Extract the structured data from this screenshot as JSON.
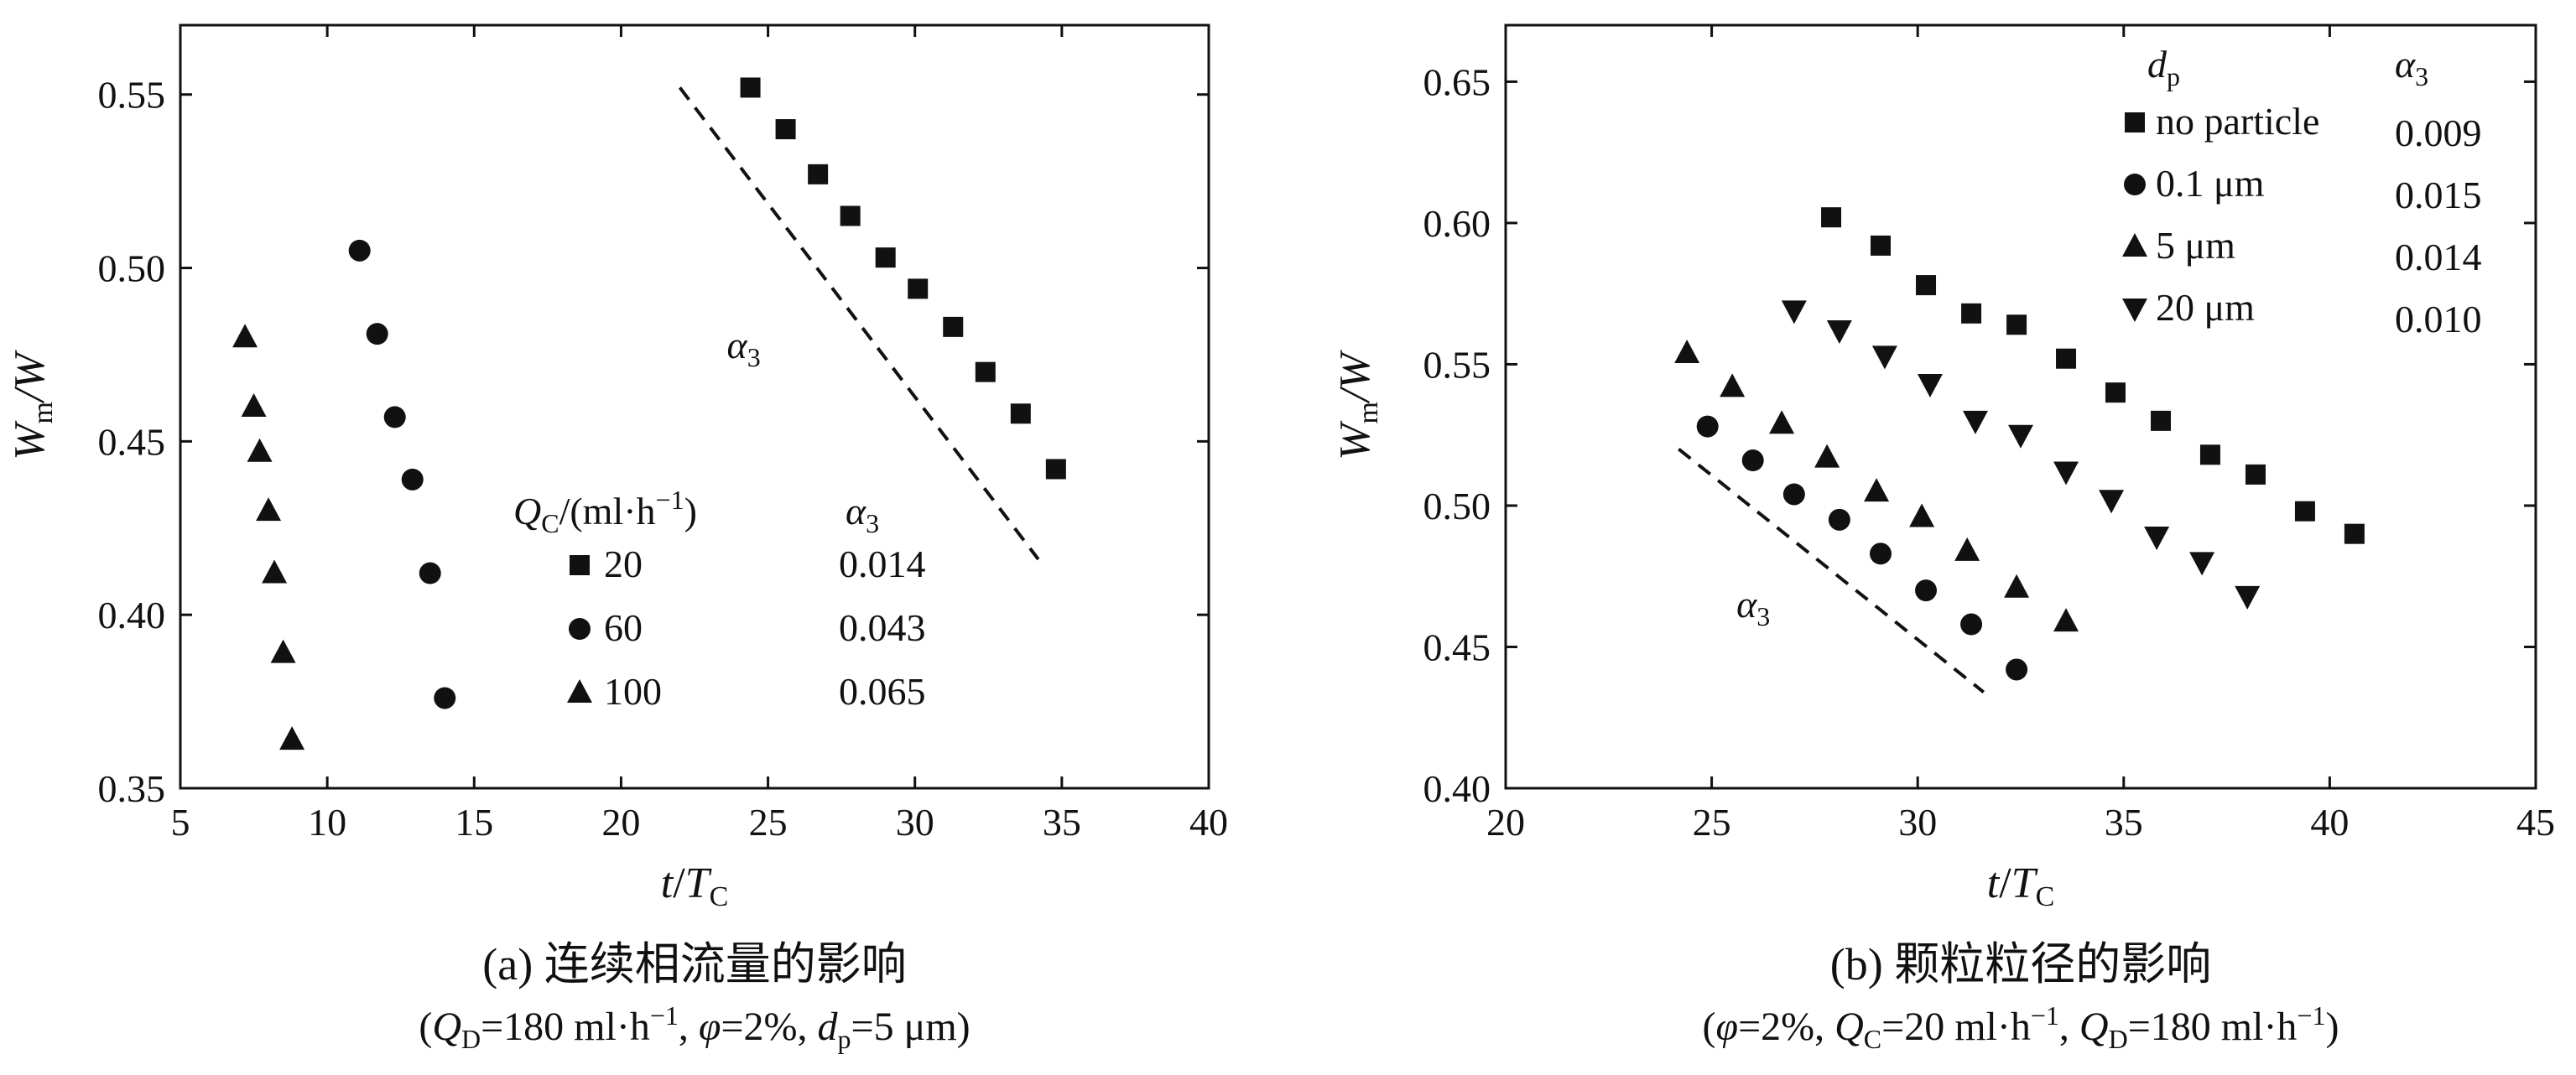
{
  "chart_data": [
    {
      "type": "scatter",
      "panel": "a",
      "xlabel": {
        "main": "t",
        "sep": "/",
        "var": "T",
        "sub": "C"
      },
      "ylabel": {
        "main": "W",
        "msub": "m",
        "sep": "/",
        "den": "W"
      },
      "xlim": [
        5,
        40
      ],
      "ylim": [
        0.35,
        0.57
      ],
      "xticks": [
        5,
        10,
        15,
        20,
        25,
        30,
        35,
        40
      ],
      "xtick_labels": [
        "5",
        "10",
        "15",
        "20",
        "25",
        "30",
        "35",
        "40"
      ],
      "yticks": [
        0.35,
        0.4,
        0.45,
        0.5,
        0.55
      ],
      "ytick_labels": [
        "0.35",
        "0.40",
        "0.45",
        "0.50",
        "0.55"
      ],
      "legend": {
        "header_q": "Q",
        "header_sub": "C",
        "header_unit": "/(ml·h",
        "header_exp": "−1",
        "header_close": ")",
        "header_alpha": "α",
        "header_alpha_sub": "3"
      },
      "series": [
        {
          "name": "20",
          "marker": "square",
          "alpha3": "0.014",
          "x": [
            24.4,
            25.6,
            26.7,
            27.8,
            29.0,
            30.1,
            31.3,
            32.4,
            33.6,
            34.8
          ],
          "y": [
            0.552,
            0.54,
            0.527,
            0.515,
            0.503,
            0.494,
            0.483,
            0.47,
            0.458,
            0.442
          ]
        },
        {
          "name": "60",
          "marker": "circle",
          "alpha3": "0.043",
          "x": [
            11.1,
            11.7,
            12.3,
            12.9,
            13.5,
            14.0
          ],
          "y": [
            0.505,
            0.481,
            0.457,
            0.439,
            0.412,
            0.376
          ]
        },
        {
          "name": "100",
          "marker": "triangle",
          "alpha3": "0.065",
          "x": [
            7.2,
            7.5,
            7.7,
            8.0,
            8.2,
            8.5,
            8.8
          ],
          "y": [
            0.48,
            0.46,
            0.447,
            0.43,
            0.412,
            0.389,
            0.364
          ]
        }
      ],
      "annotation": {
        "text": "α",
        "sub": "3",
        "x": 23.6,
        "y": 0.474
      },
      "guide_line": {
        "x": [
          22.0,
          34.2
        ],
        "y": [
          0.552,
          0.416
        ]
      },
      "caption_title": "(a) 连续相流量的影响",
      "caption_cond": {
        "p1": "(",
        "q": "Q",
        "q_sub": "D",
        "p2": "=180 ml·h",
        "exp1": "−1",
        "p3": ", ",
        "phi": "φ",
        "p4": "=2%, ",
        "d": "d",
        "d_sub": "p",
        "p5": "=5 μm)"
      }
    },
    {
      "type": "scatter",
      "panel": "b",
      "xlabel": {
        "main": "t",
        "sep": "/",
        "var": "T",
        "sub": "C"
      },
      "ylabel": {
        "main": "W",
        "msub": "m",
        "sep": "/",
        "den": "W"
      },
      "xlim": [
        20,
        45
      ],
      "ylim": [
        0.4,
        0.67
      ],
      "xticks": [
        20,
        25,
        30,
        35,
        40,
        45
      ],
      "xtick_labels": [
        "20",
        "25",
        "30",
        "35",
        "40",
        "45"
      ],
      "yticks": [
        0.4,
        0.45,
        0.5,
        0.55,
        0.6,
        0.65
      ],
      "ytick_labels": [
        "0.40",
        "0.45",
        "0.50",
        "0.55",
        "0.60",
        "0.65"
      ],
      "legend": {
        "header_d": "d",
        "header_sub": "p",
        "header_alpha": "α",
        "header_alpha_sub": "3"
      },
      "series": [
        {
          "name": "no particle",
          "marker": "square",
          "alpha3": "0.009",
          "x": [
            27.9,
            29.1,
            30.2,
            31.3,
            32.4,
            33.6,
            34.8,
            35.9,
            37.1,
            38.2,
            39.4,
            40.6
          ],
          "y": [
            0.602,
            0.592,
            0.578,
            0.568,
            0.564,
            0.552,
            0.54,
            0.53,
            0.518,
            0.511,
            0.498,
            0.49
          ]
        },
        {
          "name": "0.1 μm",
          "marker": "circle",
          "alpha3": "0.015",
          "x": [
            24.9,
            26.0,
            27.0,
            28.1,
            29.1,
            30.2,
            31.3,
            32.4
          ],
          "y": [
            0.528,
            0.516,
            0.504,
            0.495,
            0.483,
            0.47,
            0.458,
            0.442
          ]
        },
        {
          "name": "5 μm",
          "marker": "triangle",
          "alpha3": "0.014",
          "x": [
            24.4,
            25.5,
            26.7,
            27.8,
            29.0,
            30.1,
            31.2,
            32.4,
            33.6
          ],
          "y": [
            0.554,
            0.542,
            0.529,
            0.517,
            0.505,
            0.496,
            0.484,
            0.471,
            0.459
          ]
        },
        {
          "name": "20 μm",
          "marker": "triangle-down",
          "alpha3": "0.010",
          "x": [
            27.0,
            28.1,
            29.2,
            30.3,
            31.4,
            32.5,
            33.6,
            34.7,
            35.8,
            36.9,
            38.0
          ],
          "y": [
            0.569,
            0.562,
            0.553,
            0.543,
            0.53,
            0.525,
            0.512,
            0.502,
            0.489,
            0.48,
            0.468
          ]
        }
      ],
      "annotation": {
        "text": "α",
        "sub": "3",
        "x": 25.6,
        "y": 0.4605
      },
      "guide_line": {
        "x": [
          24.2,
          31.6
        ],
        "y": [
          0.52,
          0.434
        ]
      },
      "caption_title": "(b) 颗粒粒径的影响",
      "caption_cond": {
        "p1": "(",
        "phi": "φ",
        "p2": "=2%, ",
        "q1": "Q",
        "q1_sub": "C",
        "p3": "=20 ml·h",
        "exp1": "−1",
        "p4": ", ",
        "q2": "Q",
        "q2_sub": "D",
        "p5": "=180 ml·h",
        "exp2": "−1",
        "p6": ")"
      }
    }
  ]
}
